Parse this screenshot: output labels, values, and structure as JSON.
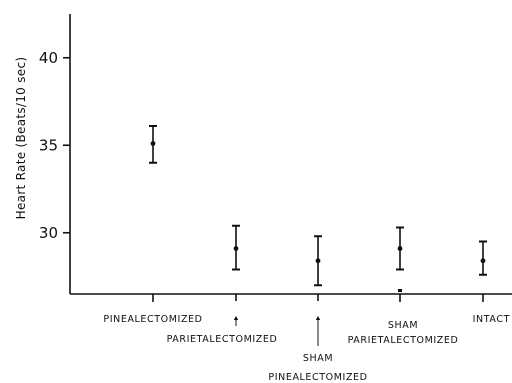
{
  "chart_data": {
    "type": "scatter",
    "title": "",
    "xlabel": "",
    "ylabel": "Heart Rate (Beats/10 sec)",
    "ylim": [
      26.5,
      42.5
    ],
    "yticks": [
      "30",
      "35",
      "40"
    ],
    "grid": false,
    "legend": "none",
    "categories": [
      [
        "PINEALECTOMIZED"
      ],
      [
        "PARIETALECTOMIZED"
      ],
      [
        "SHAM",
        "PINEALECTOMIZED"
      ],
      [
        "SHAM",
        "PARIETALECTOMIZED"
      ],
      [
        "INTACT"
      ]
    ],
    "series": [
      {
        "mean": [
          35.1,
          29.1,
          28.4,
          29.1,
          28.4
        ],
        "upper": [
          36.1,
          30.4,
          29.8,
          30.3,
          29.5
        ],
        "lower": [
          34.0,
          27.9,
          27.0,
          27.9,
          27.6
        ]
      }
    ],
    "extra_mark": {
      "category": "SHAM PARIETALECTOMIZED",
      "value": 26.7
    },
    "colors": {
      "ink": "#111111",
      "background": "#ffffff"
    }
  }
}
